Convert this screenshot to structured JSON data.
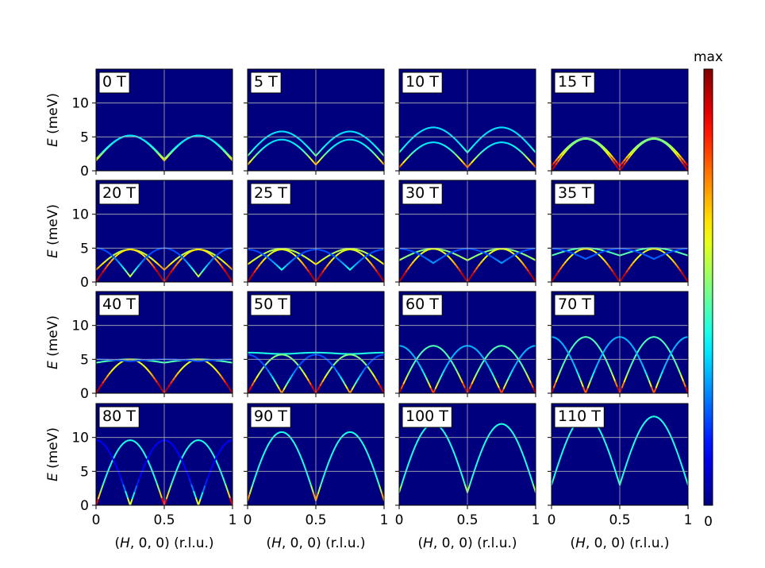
{
  "chart_data": {
    "type": "heatmap",
    "layout": {
      "rows": 4,
      "cols": 4
    },
    "x_range": [
      0,
      1
    ],
    "y_range": [
      0,
      15
    ],
    "x_ticks": [
      {
        "value": 0,
        "label": "0"
      },
      {
        "value": 0.5,
        "label": "0.5"
      },
      {
        "value": 1,
        "label": "1"
      }
    ],
    "y_ticks": [
      {
        "value": 0,
        "label": "0"
      },
      {
        "value": 5,
        "label": "5"
      },
      {
        "value": 10,
        "label": "10"
      }
    ],
    "xlabel": "(H, 0, 0) (r.l.u.)",
    "xlabel_parts": {
      "open": "(",
      "var": "H",
      "rest": ", 0, 0) (r.l.u.)"
    },
    "ylabel_parts": {
      "var": "E",
      "rest": " (meV)"
    },
    "grid": true,
    "colormap": "jet",
    "colorbar": {
      "top_label": "max",
      "bottom_label": "0"
    },
    "panels": [
      {
        "label": "0 T",
        "branches": [
          {
            "type": "sin",
            "base": 1.5,
            "amp": 3.7,
            "intensity": 0.45
          },
          {
            "type": "sin",
            "base": 1.7,
            "amp": 3.5,
            "intensity": 0.35
          }
        ]
      },
      {
        "label": "5 T",
        "branches": [
          {
            "type": "sin",
            "base": 2.2,
            "amp": 3.6,
            "intensity": 0.35
          },
          {
            "type": "sin",
            "base": 0.9,
            "amp": 3.7,
            "intensity": 0.35
          }
        ]
      },
      {
        "label": "10 T",
        "branches": [
          {
            "type": "sin",
            "base": 2.7,
            "amp": 3.7,
            "intensity": 0.35
          },
          {
            "type": "sin",
            "base": 0.5,
            "amp": 3.7,
            "intensity": 0.35
          }
        ]
      },
      {
        "label": "15 T",
        "branches": [
          {
            "type": "sin",
            "base": 0.7,
            "amp": 4.1,
            "intensity": 0.5
          },
          {
            "type": "sin",
            "base": 0.0,
            "amp": 4.7,
            "intensity": 0.5
          }
        ]
      },
      {
        "label": "20 T",
        "branches": [
          {
            "type": "sin",
            "base": 1.8,
            "amp": 3.0,
            "intensity": 0.55
          },
          {
            "type": "sin",
            "base": 0.0,
            "amp": 4.8,
            "intensity": 0.65
          },
          {
            "type": "cos",
            "base": 0.8,
            "amp": 4.2,
            "intensity": 0.2
          }
        ]
      },
      {
        "label": "25 T",
        "branches": [
          {
            "type": "sin",
            "base": 2.6,
            "amp": 2.3,
            "intensity": 0.55
          },
          {
            "type": "sin",
            "base": 0.0,
            "amp": 4.8,
            "intensity": 0.6
          },
          {
            "type": "cos",
            "base": 1.8,
            "amp": 3.0,
            "intensity": 0.2
          }
        ]
      },
      {
        "label": "30 T",
        "branches": [
          {
            "type": "sin",
            "base": 3.2,
            "amp": 1.7,
            "intensity": 0.5
          },
          {
            "type": "sin",
            "base": 0.0,
            "amp": 4.9,
            "intensity": 0.6
          },
          {
            "type": "cos",
            "base": 2.8,
            "amp": 2.1,
            "intensity": 0.2
          }
        ]
      },
      {
        "label": "35 T",
        "branches": [
          {
            "type": "sin",
            "base": 3.9,
            "amp": 1.1,
            "intensity": 0.45
          },
          {
            "type": "sin",
            "base": 0.0,
            "amp": 4.9,
            "intensity": 0.6
          },
          {
            "type": "cos",
            "base": 3.4,
            "amp": 1.5,
            "intensity": 0.2
          }
        ]
      },
      {
        "label": "40 T",
        "branches": [
          {
            "type": "sin",
            "base": 4.5,
            "amp": 0.5,
            "intensity": 0.45
          },
          {
            "type": "sin",
            "base": 0.0,
            "amp": 5.0,
            "intensity": 0.6
          },
          {
            "type": "cos",
            "base": 4.7,
            "amp": 0.3,
            "intensity": 0.2
          }
        ]
      },
      {
        "label": "50 T",
        "branches": [
          {
            "type": "flat",
            "base": 5.9,
            "amp": 0.0,
            "intensity": 0.4
          },
          {
            "type": "sin",
            "base": 0.0,
            "amp": 5.7,
            "intensity": 0.5
          },
          {
            "type": "cos",
            "base": 0.0,
            "amp": 5.7,
            "intensity": 0.2
          }
        ]
      },
      {
        "label": "60 T",
        "branches": [
          {
            "type": "sin",
            "base": 0.0,
            "amp": 7.0,
            "intensity": 0.45
          },
          {
            "type": "cos",
            "base": 0.0,
            "amp": 7.0,
            "intensity": 0.3
          }
        ]
      },
      {
        "label": "70 T",
        "branches": [
          {
            "type": "sin",
            "base": 0.0,
            "amp": 8.3,
            "intensity": 0.45
          },
          {
            "type": "cos",
            "base": 0.0,
            "amp": 8.3,
            "intensity": 0.3
          }
        ]
      },
      {
        "label": "80 T",
        "branches": [
          {
            "type": "sin",
            "base": 0.0,
            "amp": 9.6,
            "intensity": 0.4
          },
          {
            "type": "cos",
            "base": 0.0,
            "amp": 9.6,
            "intensity": 0.12
          }
        ]
      },
      {
        "label": "90 T",
        "branches": [
          {
            "type": "sin",
            "base": 0.7,
            "amp": 10.1,
            "intensity": 0.4
          }
        ]
      },
      {
        "label": "100 T",
        "branches": [
          {
            "type": "sin",
            "base": 1.9,
            "amp": 10.1,
            "intensity": 0.4
          }
        ]
      },
      {
        "label": "110 T",
        "branches": [
          {
            "type": "sin",
            "base": 3.0,
            "amp": 10.1,
            "intensity": 0.4
          }
        ]
      }
    ]
  }
}
